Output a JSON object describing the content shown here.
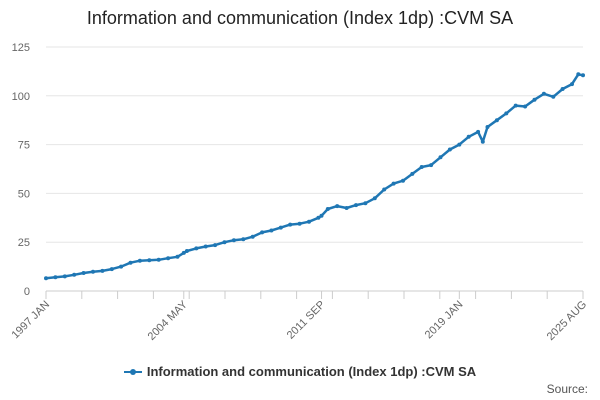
{
  "colors": {
    "series": "#1f77b4",
    "grid": "#e6e6e6",
    "axis": "#cccccc",
    "label": "#666666"
  },
  "footer": {
    "source_label": "Source:"
  },
  "chart_data": {
    "type": "line",
    "title": "Information and communication (Index 1dp) :CVM SA",
    "xlabel": "",
    "ylabel": "",
    "ylim": [
      0,
      125
    ],
    "yticks": [
      0,
      25,
      50,
      75,
      100,
      125
    ],
    "x_tick_labels": [
      "1997 JAN",
      "2004 MAY",
      "2011 SEP",
      "2019 JAN",
      "2025 AUG"
    ],
    "grid": "horizontal",
    "legend_position": "bottom",
    "x": [
      "1997-01",
      "1997-07",
      "1998-01",
      "1998-07",
      "1999-01",
      "1999-07",
      "2000-01",
      "2000-07",
      "2001-01",
      "2001-07",
      "2002-01",
      "2002-07",
      "2003-01",
      "2003-07",
      "2004-01",
      "2004-05",
      "2004-07",
      "2005-01",
      "2005-07",
      "2006-01",
      "2006-07",
      "2007-01",
      "2007-07",
      "2008-01",
      "2008-07",
      "2009-01",
      "2009-07",
      "2010-01",
      "2010-07",
      "2011-01",
      "2011-07",
      "2011-09",
      "2012-01",
      "2012-07",
      "2013-01",
      "2013-07",
      "2014-01",
      "2014-07",
      "2015-01",
      "2015-07",
      "2016-01",
      "2016-07",
      "2017-01",
      "2017-07",
      "2018-01",
      "2018-07",
      "2019-01",
      "2019-07",
      "2020-01",
      "2020-04",
      "2020-07",
      "2021-01",
      "2021-07",
      "2022-01",
      "2022-07",
      "2023-01",
      "2023-07",
      "2024-01",
      "2024-07",
      "2025-01",
      "2025-05",
      "2025-08"
    ],
    "series": [
      {
        "name": "Information and communication (Index 1dp) :CVM SA",
        "values": [
          6.5,
          7.0,
          7.5,
          8.3,
          9.2,
          9.9,
          10.3,
          11.2,
          12.5,
          14.5,
          15.5,
          15.8,
          16.0,
          16.8,
          17.5,
          19.5,
          20.5,
          21.8,
          22.8,
          23.5,
          25.0,
          26.0,
          26.5,
          27.8,
          30.0,
          31.0,
          32.5,
          34.0,
          34.5,
          35.5,
          37.5,
          38.5,
          42.0,
          43.5,
          42.5,
          44.0,
          45.0,
          47.5,
          52.0,
          55.0,
          56.5,
          60.0,
          63.5,
          64.5,
          68.5,
          72.5,
          75.0,
          79.0,
          81.5,
          76.5,
          84.0,
          87.5,
          91.0,
          95.0,
          94.5,
          98.0,
          101.0,
          99.5,
          103.5,
          106.0,
          111.0,
          110.5
        ]
      }
    ]
  }
}
